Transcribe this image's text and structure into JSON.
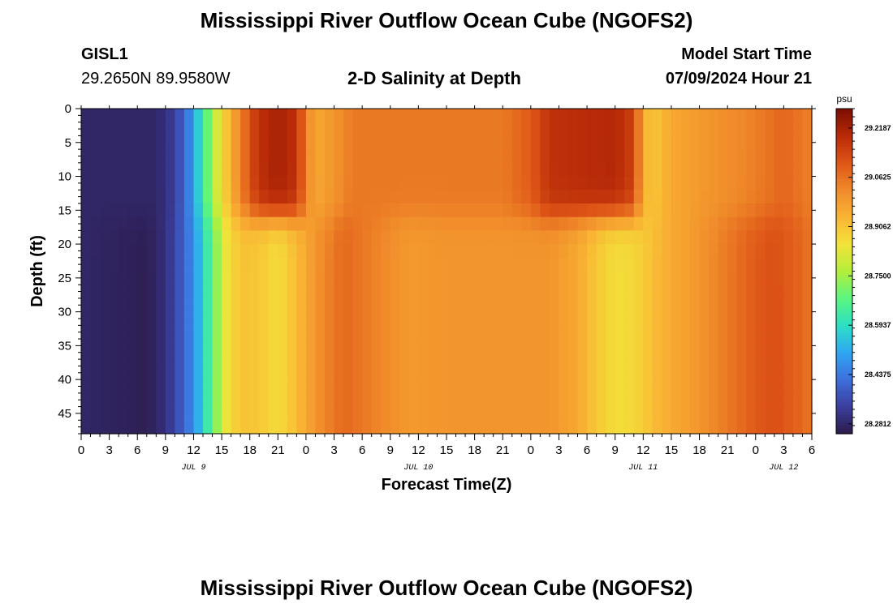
{
  "page": {
    "title": "Mississippi River Outflow Ocean Cube (NGOFS2)",
    "title_repeat": "Mississippi River Outflow Ocean Cube (NGOFS2)",
    "station": "GISL1",
    "coords": "29.2650N  89.9580W",
    "subtitle": "2-D Salinity at Depth",
    "model_start_label": "Model Start Time",
    "model_start_value": "07/09/2024 Hour 21"
  },
  "chart_data": {
    "type": "heatmap",
    "title": "2-D Salinity at Depth",
    "xlabel": "Forecast Time(Z)",
    "ylabel": "Depth (ft)",
    "x_ticks": [
      "0",
      "3",
      "6",
      "9",
      "12",
      "15",
      "18",
      "21",
      "0",
      "3",
      "6",
      "9",
      "12",
      "15",
      "18",
      "21",
      "0",
      "3",
      "6",
      "9",
      "12",
      "15",
      "18",
      "21",
      "0",
      "3",
      "6"
    ],
    "day_labels": [
      {
        "text": "JUL 9",
        "hour": 12
      },
      {
        "text": "JUL 10",
        "hour": 36
      },
      {
        "text": "JUL 11",
        "hour": 60
      },
      {
        "text": "JUL 12",
        "hour": 75
      }
    ],
    "xlim": [
      0,
      78
    ],
    "ylim": [
      0,
      48
    ],
    "y_ticks": [
      "0",
      "5",
      "10",
      "15",
      "20",
      "25",
      "30",
      "35",
      "40",
      "45"
    ],
    "colorbar": {
      "unit": "psu",
      "min": 28.25,
      "max": 29.28,
      "tick_labels": [
        "29.2187",
        "29.0625",
        "28.9062",
        "28.7500",
        "28.5937",
        "28.4375",
        "28.2812"
      ],
      "tick_values": [
        29.21875,
        29.0625,
        28.90625,
        28.75,
        28.59375,
        28.4375,
        28.28125
      ],
      "colors": [
        "#2c1a4a",
        "#3b3f9e",
        "#3e6fdc",
        "#2fa7f2",
        "#2de0c4",
        "#5bf57f",
        "#b5ee3c",
        "#f3e23a",
        "#f9b434",
        "#f08a2a",
        "#de5517",
        "#b82a08",
        "#7a0e02"
      ]
    },
    "surface_layer": {
      "depth_range": [
        0,
        16
      ],
      "profile": [
        {
          "hour": 0,
          "value": 28.28
        },
        {
          "hour": 8,
          "value": 28.28
        },
        {
          "hour": 10,
          "value": 28.33
        },
        {
          "hour": 11.5,
          "value": 28.45
        },
        {
          "hour": 13,
          "value": 28.62
        },
        {
          "hour": 14,
          "value": 28.76
        },
        {
          "hour": 15,
          "value": 28.86
        },
        {
          "hour": 16,
          "value": 28.95
        },
        {
          "hour": 17,
          "value": 29.03
        },
        {
          "hour": 18,
          "value": 29.12
        },
        {
          "hour": 19,
          "value": 29.18
        },
        {
          "hour": 21,
          "value": 29.22
        },
        {
          "hour": 23,
          "value": 29.18
        },
        {
          "hour": 24,
          "value": 29.04
        },
        {
          "hour": 25,
          "value": 28.96
        },
        {
          "hour": 27,
          "value": 29.0
        },
        {
          "hour": 29,
          "value": 29.05
        },
        {
          "hour": 45,
          "value": 29.05
        },
        {
          "hour": 48,
          "value": 29.1
        },
        {
          "hour": 50,
          "value": 29.18
        },
        {
          "hour": 57,
          "value": 29.2
        },
        {
          "hour": 59,
          "value": 29.15
        },
        {
          "hour": 60,
          "value": 28.95
        },
        {
          "hour": 61,
          "value": 28.9
        },
        {
          "hour": 63,
          "value": 28.96
        },
        {
          "hour": 66,
          "value": 28.99
        },
        {
          "hour": 71,
          "value": 29.03
        },
        {
          "hour": 75,
          "value": 29.08
        },
        {
          "hour": 78,
          "value": 29.04
        }
      ]
    },
    "deep_layer": {
      "depth_range": [
        16,
        48
      ],
      "profile": [
        {
          "hour": 0,
          "value": 28.28
        },
        {
          "hour": 7,
          "value": 28.26
        },
        {
          "hour": 9,
          "value": 28.3
        },
        {
          "hour": 11,
          "value": 28.4
        },
        {
          "hour": 12.5,
          "value": 28.52
        },
        {
          "hour": 14,
          "value": 28.68
        },
        {
          "hour": 15.5,
          "value": 28.84
        },
        {
          "hour": 17,
          "value": 28.91
        },
        {
          "hour": 19,
          "value": 28.9
        },
        {
          "hour": 21,
          "value": 28.86
        },
        {
          "hour": 23,
          "value": 28.92
        },
        {
          "hour": 25,
          "value": 29.0
        },
        {
          "hour": 28,
          "value": 29.08
        },
        {
          "hour": 31,
          "value": 29.04
        },
        {
          "hour": 35,
          "value": 28.99
        },
        {
          "hour": 39,
          "value": 29.0
        },
        {
          "hour": 45,
          "value": 29.0
        },
        {
          "hour": 50,
          "value": 29.0
        },
        {
          "hour": 53,
          "value": 28.96
        },
        {
          "hour": 55,
          "value": 28.9
        },
        {
          "hour": 57,
          "value": 28.86
        },
        {
          "hour": 59,
          "value": 28.87
        },
        {
          "hour": 62,
          "value": 28.94
        },
        {
          "hour": 66,
          "value": 29.0
        },
        {
          "hour": 69,
          "value": 29.05
        },
        {
          "hour": 72,
          "value": 29.1
        },
        {
          "hour": 74,
          "value": 29.12
        },
        {
          "hour": 77,
          "value": 29.08
        },
        {
          "hour": 78,
          "value": 29.05
        }
      ]
    }
  }
}
